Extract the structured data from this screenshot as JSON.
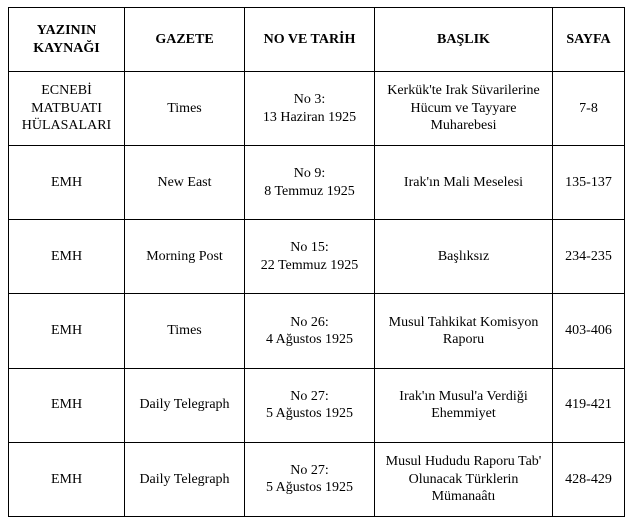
{
  "columns": [
    "YAZININ KAYNAĞI",
    "GAZETE",
    "NO VE TARİH",
    "BAŞLIK",
    "SAYFA"
  ],
  "rows": [
    {
      "source": "ECNEBİ MATBUATI HÜLASALARI",
      "gazete": "Times",
      "no_tarih_line1": "No 3:",
      "no_tarih_line2": "13 Haziran 1925",
      "baslik": "Kerkük'te Irak Süvarilerine Hücum ve Tayyare Muharebesi",
      "sayfa": "7-8"
    },
    {
      "source": "EMH",
      "gazete": "New East",
      "no_tarih_line1": "No 9:",
      "no_tarih_line2": "8 Temmuz 1925",
      "baslik": "Irak'ın Mali Meselesi",
      "sayfa": "135-137"
    },
    {
      "source": "EMH",
      "gazete": "Morning Post",
      "no_tarih_line1": "No 15:",
      "no_tarih_line2": "22 Temmuz 1925",
      "baslik": "Başlıksız",
      "sayfa": "234-235"
    },
    {
      "source": "EMH",
      "gazete": "Times",
      "no_tarih_line1": "No 26:",
      "no_tarih_line2": "4 Ağustos 1925",
      "baslik": "Musul Tahkikat Komisyon Raporu",
      "sayfa": "403-406"
    },
    {
      "source": "EMH",
      "gazete": "Daily Telegraph",
      "no_tarih_line1": "No 27:",
      "no_tarih_line2": "5 Ağustos 1925",
      "baslik": "Irak'ın Musul'a Verdiği Ehemmiyet",
      "sayfa": "419-421"
    },
    {
      "source": "EMH",
      "gazete": "Daily Telegraph",
      "no_tarih_line1": "No 27:",
      "no_tarih_line2": "5 Ağustos 1925",
      "baslik": "Musul Hududu Raporu Tab' Olunacak Türklerin Mümanaâtı",
      "sayfa": "428-429"
    }
  ]
}
